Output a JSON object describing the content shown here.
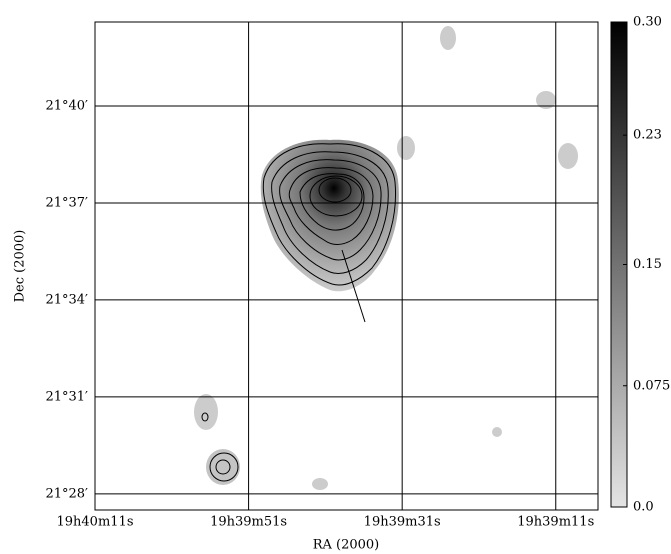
{
  "chart_data": {
    "type": "image",
    "xlabel": "RA (2000)",
    "ylabel": "Dec (2000)",
    "xlim": [
      70811,
      70745.5
    ],
    "xticks": [
      {
        "value": 70811,
        "label": "19h40m11s"
      },
      {
        "value": 70791,
        "label": "19h39m51s"
      },
      {
        "value": 70771,
        "label": "19h39m31s"
      },
      {
        "value": 70751,
        "label": "19h39m11s"
      }
    ],
    "ylim": [
      1287.5,
      1302.6
    ],
    "yticks": [
      {
        "value": 1300,
        "label": "21°40′"
      },
      {
        "value": 1297,
        "label": "21°37′"
      },
      {
        "value": 1294,
        "label": "21°34′"
      },
      {
        "value": 1291,
        "label": "21°31′"
      },
      {
        "value": 1288,
        "label": "21°28′"
      }
    ],
    "grid": true,
    "colorbar": {
      "clim": [
        0,
        0.3
      ],
      "colors": [
        "#e4e4e4",
        "#000000"
      ],
      "ticks": [
        {
          "value": 0,
          "label": "0.0"
        },
        0.075,
        0.15,
        0.23,
        {
          "value": 0.3,
          "label": "0.30"
        }
      ]
    }
  }
}
